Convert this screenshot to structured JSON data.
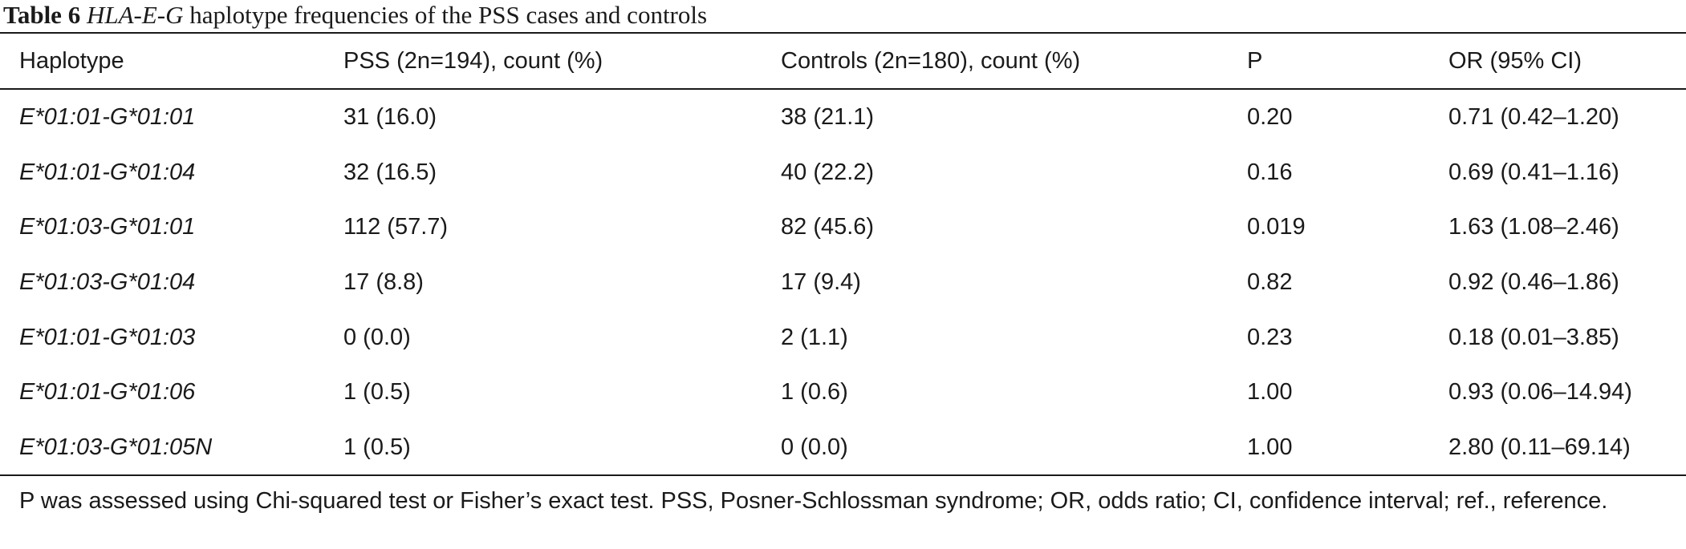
{
  "caption": {
    "label": "Table 6",
    "gene": "HLA-E-G",
    "text": "haplotype frequencies of the PSS cases and controls"
  },
  "table": {
    "headers": [
      "Haplotype",
      "PSS (2n=194), count (%)",
      "Controls (2n=180), count (%)",
      "P",
      "OR (95% CI)"
    ],
    "rows": [
      [
        "E*01:01-G*01:01",
        "31 (16.0)",
        "38 (21.1)",
        "0.20",
        "0.71 (0.42–1.20)"
      ],
      [
        "E*01:01-G*01:04",
        "32 (16.5)",
        "40 (22.2)",
        "0.16",
        "0.69 (0.41–1.16)"
      ],
      [
        "E*01:03-G*01:01",
        "112 (57.7)",
        "82 (45.6)",
        "0.019",
        "1.63 (1.08–2.46)"
      ],
      [
        "E*01:03-G*01:04",
        "17 (8.8)",
        "17 (9.4)",
        "0.82",
        "0.92 (0.46–1.86)"
      ],
      [
        "E*01:01-G*01:03",
        "0 (0.0)",
        "2 (1.1)",
        "0.23",
        "0.18 (0.01–3.85)"
      ],
      [
        "E*01:01-G*01:06",
        "1 (0.5)",
        "1 (0.6)",
        "1.00",
        "0.93 (0.06–14.94)"
      ],
      [
        "E*01:03-G*01:05N",
        "1 (0.5)",
        "0 (0.0)",
        "1.00",
        "2.80 (0.11–69.14)"
      ]
    ]
  },
  "footnote": "P was assessed using Chi-squared test or Fisher’s exact test. PSS, Posner-Schlossman syndrome; OR, odds ratio; CI, confidence interval; ref., reference."
}
